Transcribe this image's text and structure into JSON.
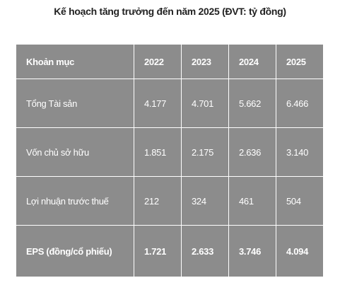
{
  "title": "Kế hoạch tăng trưởng đến năm 2025 (ĐVT: tỷ đồng)",
  "table": {
    "header": [
      "Khoản mục",
      "2022",
      "2023",
      "2024",
      "2025"
    ],
    "rows": [
      [
        "Tổng Tài sản",
        "4.177",
        "4.701",
        "5.662",
        "6.466"
      ],
      [
        "Vốn chủ sở hữu",
        "1.851",
        "2.175",
        "2.636",
        "3.140"
      ],
      [
        "Lợi nhuận trước thuế",
        "212",
        "324",
        "461",
        "504"
      ],
      [
        "EPS (đồng/cổ phiếu)",
        "1.721",
        "2.633",
        "3.746",
        "4.094"
      ]
    ]
  }
}
